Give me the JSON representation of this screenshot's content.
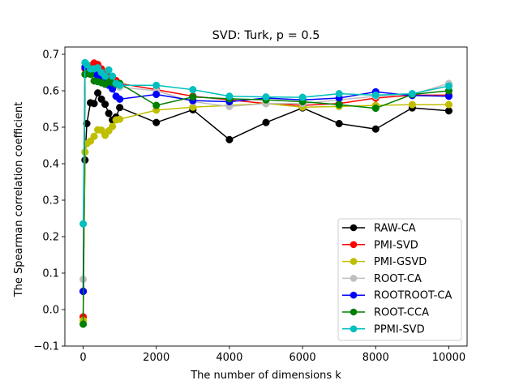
{
  "chart_data": {
    "type": "line",
    "title": "SVD: Turk, p = 0.5",
    "xlabel": "The number of dimensions k",
    "ylabel": "The Spearman correlation coefficient",
    "xlim": [
      -500,
      10500
    ],
    "ylim": [
      -0.1,
      0.72
    ],
    "xticks": [
      0,
      2000,
      4000,
      6000,
      8000,
      10000
    ],
    "xtick_labels": [
      "0",
      "2000",
      "4000",
      "6000",
      "8000",
      "10000"
    ],
    "yticks": [
      -0.1,
      0.0,
      0.1,
      0.2,
      0.3,
      0.4,
      0.5,
      0.6,
      0.7
    ],
    "ytick_labels": [
      "−0.1",
      "0.0",
      "0.1",
      "0.2",
      "0.3",
      "0.4",
      "0.5",
      "0.6",
      "0.7"
    ],
    "grid": false,
    "legend_position": "lower-right",
    "series": [
      {
        "name": "RAW-CA",
        "color": "#000000",
        "x": [
          1,
          50,
          100,
          200,
          300,
          400,
          500,
          600,
          700,
          800,
          900,
          1000,
          2000,
          3000,
          4000,
          5000,
          6000,
          7000,
          8000,
          9000,
          10000
        ],
        "y": [
          0.05,
          0.41,
          0.51,
          0.567,
          0.565,
          0.594,
          0.577,
          0.563,
          0.538,
          0.52,
          0.528,
          0.554,
          0.513,
          0.548,
          0.466,
          0.513,
          0.553,
          0.51,
          0.495,
          0.553,
          0.545
        ]
      },
      {
        "name": "PMI-SVD",
        "color": "#ff0000",
        "x": [
          1,
          50,
          100,
          200,
          300,
          400,
          500,
          600,
          700,
          800,
          900,
          1000,
          2000,
          3000,
          4000,
          5000,
          6000,
          7000,
          8000,
          9000,
          10000
        ],
        "y": [
          -0.02,
          0.66,
          0.665,
          0.668,
          0.676,
          0.672,
          0.66,
          0.645,
          0.64,
          0.635,
          0.628,
          0.62,
          0.603,
          0.585,
          0.575,
          0.565,
          0.56,
          0.565,
          0.58,
          0.588,
          0.588
        ]
      },
      {
        "name": "PMI-GSVD",
        "color": "#bfbf00",
        "x": [
          1,
          50,
          100,
          200,
          300,
          400,
          500,
          600,
          700,
          800,
          900,
          1000,
          2000,
          3000,
          4000,
          5000,
          6000,
          7000,
          8000,
          9000,
          10000
        ],
        "y": [
          -0.03,
          0.432,
          0.455,
          0.462,
          0.475,
          0.493,
          0.492,
          0.478,
          0.49,
          0.502,
          0.52,
          0.522,
          0.547,
          0.555,
          0.56,
          0.565,
          0.555,
          0.557,
          0.56,
          0.562,
          0.562
        ]
      },
      {
        "name": "ROOT-CA",
        "color": "#bfbfbf",
        "x": [
          1,
          50,
          100,
          200,
          300,
          400,
          500,
          600,
          700,
          800,
          900,
          1000,
          2000,
          3000,
          4000,
          5000,
          6000,
          7000,
          8000,
          9000,
          10000
        ],
        "y": [
          0.083,
          0.645,
          0.65,
          0.655,
          0.66,
          0.655,
          0.64,
          0.63,
          0.625,
          0.62,
          0.615,
          0.61,
          0.6,
          0.57,
          0.557,
          0.565,
          0.565,
          0.575,
          0.585,
          0.59,
          0.62
        ]
      },
      {
        "name": "ROOTROOT-CA",
        "color": "#0000ff",
        "x": [
          1,
          50,
          100,
          200,
          300,
          400,
          500,
          600,
          700,
          800,
          900,
          1000,
          2000,
          3000,
          4000,
          5000,
          6000,
          7000,
          8000,
          9000,
          10000
        ],
        "y": [
          0.05,
          0.665,
          0.658,
          0.655,
          0.648,
          0.64,
          0.63,
          0.625,
          0.615,
          0.605,
          0.585,
          0.577,
          0.59,
          0.573,
          0.57,
          0.58,
          0.575,
          0.58,
          0.597,
          0.587,
          0.585
        ]
      },
      {
        "name": "ROOT-CCA",
        "color": "#008000",
        "x": [
          1,
          50,
          100,
          200,
          300,
          400,
          500,
          600,
          700,
          800,
          900,
          1000,
          2000,
          3000,
          4000,
          5000,
          6000,
          7000,
          8000,
          9000,
          10000
        ],
        "y": [
          -0.04,
          0.645,
          0.648,
          0.645,
          0.627,
          0.625,
          0.622,
          0.618,
          0.625,
          0.622,
          0.618,
          0.62,
          0.56,
          0.583,
          0.578,
          0.575,
          0.57,
          0.562,
          0.552,
          0.59,
          0.6
        ]
      },
      {
        "name": "PPMI-SVD",
        "color": "#00bfbf",
        "x": [
          1,
          50,
          100,
          200,
          300,
          400,
          500,
          600,
          700,
          800,
          900,
          1000,
          2000,
          3000,
          4000,
          5000,
          6000,
          7000,
          8000,
          9000,
          10000
        ],
        "y": [
          0.235,
          0.677,
          0.672,
          0.66,
          0.66,
          0.663,
          0.65,
          0.64,
          0.657,
          0.64,
          0.62,
          0.615,
          0.615,
          0.603,
          0.585,
          0.583,
          0.582,
          0.592,
          0.588,
          0.592,
          0.613
        ]
      }
    ]
  }
}
